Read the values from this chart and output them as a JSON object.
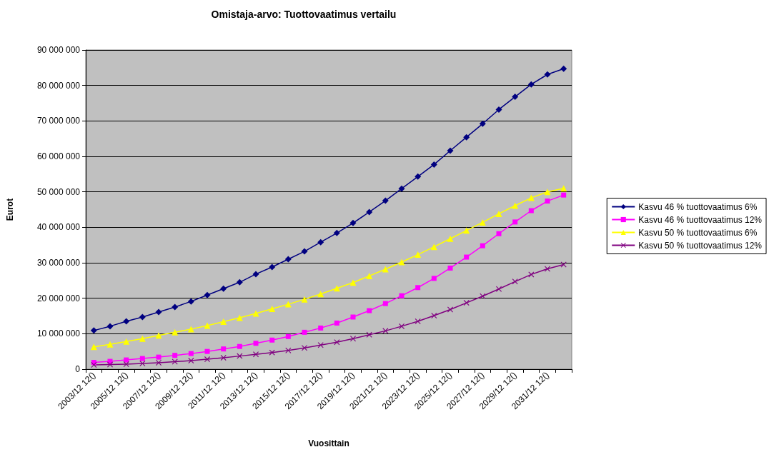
{
  "chart_data": {
    "type": "line",
    "title": "Omistaja-arvo: Tuottovaatimus vertailu",
    "xlabel": "Vuosittain",
    "ylabel": "Eurot",
    "categories": [
      "2003/12 12()",
      null,
      "2005/12 12()",
      null,
      "2007/12 12()",
      null,
      "2009/12 12()",
      null,
      "2011/12 12()",
      null,
      "2013/12 12()",
      null,
      "2015/12 12()",
      null,
      "2017/12 12()",
      null,
      "2019/12 12()",
      null,
      "2021/12 12()",
      null,
      "2023/12 12()",
      null,
      "2025/12 12()",
      null,
      "2027/12 12()",
      null,
      "2029/12 12()",
      null,
      "2031/12 12()",
      null
    ],
    "series": [
      {
        "name": "Kasvu 46 % tuottovaatimus 6%",
        "color": "#000080",
        "marker": "diamond",
        "values": [
          10900000,
          12100000,
          13500000,
          14700000,
          16100000,
          17500000,
          19100000,
          20900000,
          22700000,
          24500000,
          26800000,
          28800000,
          31000000,
          33200000,
          35800000,
          38400000,
          41200000,
          44300000,
          47500000,
          50900000,
          54300000,
          57700000,
          61600000,
          65400000,
          69200000,
          73200000,
          76800000,
          80300000,
          83100000,
          84700000
        ]
      },
      {
        "name": "Kasvu 46 % tuottovaatimus 12%",
        "color": "#ff00ff",
        "marker": "square",
        "values": [
          1900000,
          2200000,
          2600000,
          3000000,
          3400000,
          3900000,
          4400000,
          5000000,
          5700000,
          6400000,
          7300000,
          8200000,
          9200000,
          10400000,
          11600000,
          13000000,
          14700000,
          16500000,
          18500000,
          20700000,
          23000000,
          25600000,
          28500000,
          31600000,
          34800000,
          38200000,
          41500000,
          44700000,
          47400000,
          49100000
        ]
      },
      {
        "name": "Kasvu 50 % tuottovaatimus 6%",
        "color": "#ffff00",
        "marker": "triangle",
        "values": [
          6300000,
          7000000,
          7800000,
          8600000,
          9500000,
          10400000,
          11300000,
          12300000,
          13400000,
          14500000,
          15700000,
          17000000,
          18300000,
          19700000,
          21200000,
          22800000,
          24400000,
          26300000,
          28200000,
          30200000,
          32300000,
          34500000,
          36800000,
          39100000,
          41400000,
          43800000,
          46100000,
          48300000,
          50000000,
          51000000
        ]
      },
      {
        "name": "Kasvu 50 % tuottovaatimus 12%",
        "color": "#800080",
        "marker": "cross",
        "values": [
          1200000,
          1300000,
          1400000,
          1600000,
          1800000,
          2100000,
          2400000,
          2800000,
          3200000,
          3700000,
          4200000,
          4700000,
          5300000,
          6000000,
          6800000,
          7600000,
          8600000,
          9700000,
          10800000,
          12100000,
          13500000,
          15100000,
          16800000,
          18700000,
          20600000,
          22600000,
          24700000,
          26700000,
          28300000,
          29500000
        ]
      }
    ],
    "ylim": [
      0,
      90000000
    ],
    "yticks": [
      0,
      {
        "value": 10000000,
        "label": "10 000 000"
      },
      {
        "value": 20000000,
        "label": "20 000 000"
      },
      {
        "value": 30000000,
        "label": "30 000 000"
      },
      {
        "value": 40000000,
        "label": "40 000 000"
      },
      {
        "value": 50000000,
        "label": "50 000 000"
      },
      {
        "value": 60000000,
        "label": "60 000 000"
      },
      {
        "value": 70000000,
        "label": "70 000 000"
      },
      {
        "value": 80000000,
        "label": "80 000 000"
      },
      {
        "value": 90000000,
        "label": "90 000 000"
      }
    ],
    "grid": "y",
    "legend": "right",
    "line_style": "solid"
  }
}
